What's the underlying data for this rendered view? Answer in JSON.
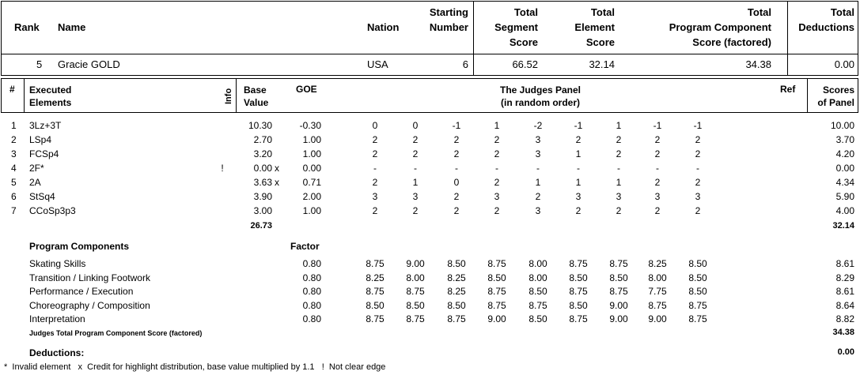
{
  "header": {
    "rank": "Rank",
    "name": "Name",
    "nation": "Nation",
    "starting": [
      "Starting",
      "Number"
    ],
    "tss": [
      "Total",
      "Segment",
      "Score"
    ],
    "tes": [
      "Total",
      "Element",
      "Score"
    ],
    "pcs": [
      "Total",
      "Program Component",
      "Score (factored)"
    ],
    "ded": [
      "Total",
      "Deductions"
    ]
  },
  "skater": {
    "rank": "5",
    "name": "Gracie GOLD",
    "nation": "USA",
    "starting_number": "6",
    "tss": "66.52",
    "tes": "32.14",
    "pcs": "34.38",
    "ded": "0.00"
  },
  "elements_header": {
    "num": "#",
    "executed": [
      "Executed",
      "Elements"
    ],
    "info": "Info",
    "base": [
      "Base",
      "Value"
    ],
    "goe": "GOE",
    "judges": [
      "The Judges Panel",
      "(in random order)"
    ],
    "ref": "Ref",
    "scores": [
      "Scores",
      "of Panel"
    ]
  },
  "elements": [
    {
      "n": "1",
      "el": "3Lz+3T",
      "info": "",
      "bv": "10.30",
      "x": "",
      "goe": "-0.30",
      "j": [
        "0",
        "0",
        "-1",
        "1",
        "-2",
        "-1",
        "1",
        "-1",
        "-1"
      ],
      "score": "10.00"
    },
    {
      "n": "2",
      "el": "LSp4",
      "info": "",
      "bv": "2.70",
      "x": "",
      "goe": "1.00",
      "j": [
        "2",
        "2",
        "2",
        "2",
        "3",
        "2",
        "2",
        "2",
        "2"
      ],
      "score": "3.70"
    },
    {
      "n": "3",
      "el": "FCSp4",
      "info": "",
      "bv": "3.20",
      "x": "",
      "goe": "1.00",
      "j": [
        "2",
        "2",
        "2",
        "2",
        "3",
        "1",
        "2",
        "2",
        "2"
      ],
      "score": "4.20"
    },
    {
      "n": "4",
      "el": "2F*",
      "info": "!",
      "bv": "0.00",
      "x": "x",
      "goe": "0.00",
      "j": [
        "-",
        "-",
        "-",
        "-",
        "-",
        "-",
        "-",
        "-",
        "-"
      ],
      "score": "0.00"
    },
    {
      "n": "5",
      "el": "2A",
      "info": "",
      "bv": "3.63",
      "x": "x",
      "goe": "0.71",
      "j": [
        "2",
        "1",
        "0",
        "2",
        "1",
        "1",
        "1",
        "2",
        "2"
      ],
      "score": "4.34"
    },
    {
      "n": "6",
      "el": "StSq4",
      "info": "",
      "bv": "3.90",
      "x": "",
      "goe": "2.00",
      "j": [
        "3",
        "3",
        "2",
        "3",
        "2",
        "3",
        "3",
        "3",
        "3"
      ],
      "score": "5.90"
    },
    {
      "n": "7",
      "el": "CCoSp3p3",
      "info": "",
      "bv": "3.00",
      "x": "",
      "goe": "1.00",
      "j": [
        "2",
        "2",
        "2",
        "2",
        "3",
        "2",
        "2",
        "2",
        "2"
      ],
      "score": "4.00"
    }
  ],
  "bv_total": "26.73",
  "tes_total": "32.14",
  "pc_header": {
    "title": "Program Components",
    "factor": "Factor"
  },
  "components": [
    {
      "name": "Skating Skills",
      "factor": "0.80",
      "j": [
        "8.75",
        "9.00",
        "8.50",
        "8.75",
        "8.00",
        "8.75",
        "8.75",
        "8.25",
        "8.50"
      ],
      "score": "8.61"
    },
    {
      "name": "Transition / Linking Footwork",
      "factor": "0.80",
      "j": [
        "8.25",
        "8.00",
        "8.25",
        "8.50",
        "8.00",
        "8.50",
        "8.50",
        "8.00",
        "8.50"
      ],
      "score": "8.29"
    },
    {
      "name": "Performance / Execution",
      "factor": "0.80",
      "j": [
        "8.75",
        "8.75",
        "8.25",
        "8.75",
        "8.50",
        "8.75",
        "8.75",
        "7.75",
        "8.50"
      ],
      "score": "8.61"
    },
    {
      "name": "Choreography / Composition",
      "factor": "0.80",
      "j": [
        "8.50",
        "8.50",
        "8.50",
        "8.75",
        "8.75",
        "8.50",
        "9.00",
        "8.75",
        "8.75"
      ],
      "score": "8.64"
    },
    {
      "name": "Interpretation",
      "factor": "0.80",
      "j": [
        "8.75",
        "8.75",
        "8.75",
        "9.00",
        "8.50",
        "8.75",
        "9.00",
        "9.00",
        "8.75"
      ],
      "score": "8.82"
    }
  ],
  "pcs_label": "Judges Total Program Component Score (factored)",
  "pcs_total": "34.38",
  "deductions_label": "Deductions:",
  "deductions_total": "0.00",
  "footnote": "*  Invalid element   x  Credit for highlight distribution, base value multiplied by 1.1   !  Not clear edge"
}
